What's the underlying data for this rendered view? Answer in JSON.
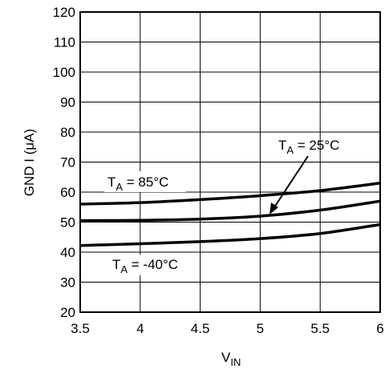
{
  "chart_data": {
    "type": "line",
    "xlabel": {
      "main": "V",
      "sub": "IN"
    },
    "ylabel": "GND I (μA)",
    "xlim": [
      3.5,
      6
    ],
    "ylim": [
      20,
      120
    ],
    "x_ticks": [
      3.5,
      4,
      4.5,
      5,
      5.5,
      6
    ],
    "x_tick_labels": [
      "3.5",
      "4",
      "4.5",
      "5",
      "5.5",
      "6"
    ],
    "y_ticks": [
      20,
      30,
      40,
      50,
      60,
      70,
      80,
      90,
      100,
      110,
      120
    ],
    "y_tick_labels": [
      "20",
      "30",
      "40",
      "50",
      "60",
      "70",
      "80",
      "90",
      "100",
      "110",
      "120"
    ],
    "grid": true,
    "series": [
      {
        "x": [
          3.5,
          4,
          4.5,
          5,
          5.5,
          6
        ],
        "y": [
          56,
          56.5,
          57.5,
          58.8,
          60.5,
          63
        ]
      },
      {
        "x": [
          3.5,
          4,
          4.5,
          5,
          5.5,
          6
        ],
        "y": [
          50.5,
          50.6,
          51,
          52,
          54,
          57
        ]
      },
      {
        "x": [
          3.5,
          4,
          4.5,
          5,
          5.5,
          6
        ],
        "y": [
          42.2,
          42.8,
          43.5,
          44.5,
          46.2,
          49.2
        ]
      }
    ],
    "annotations": [
      {
        "main": "T",
        "sub": "A",
        "rest": " = 85°C"
      },
      {
        "main": "T",
        "sub": "A",
        "rest": " = 25°C"
      },
      {
        "main": "T",
        "sub": "A",
        "rest": " = -40°C"
      }
    ]
  }
}
